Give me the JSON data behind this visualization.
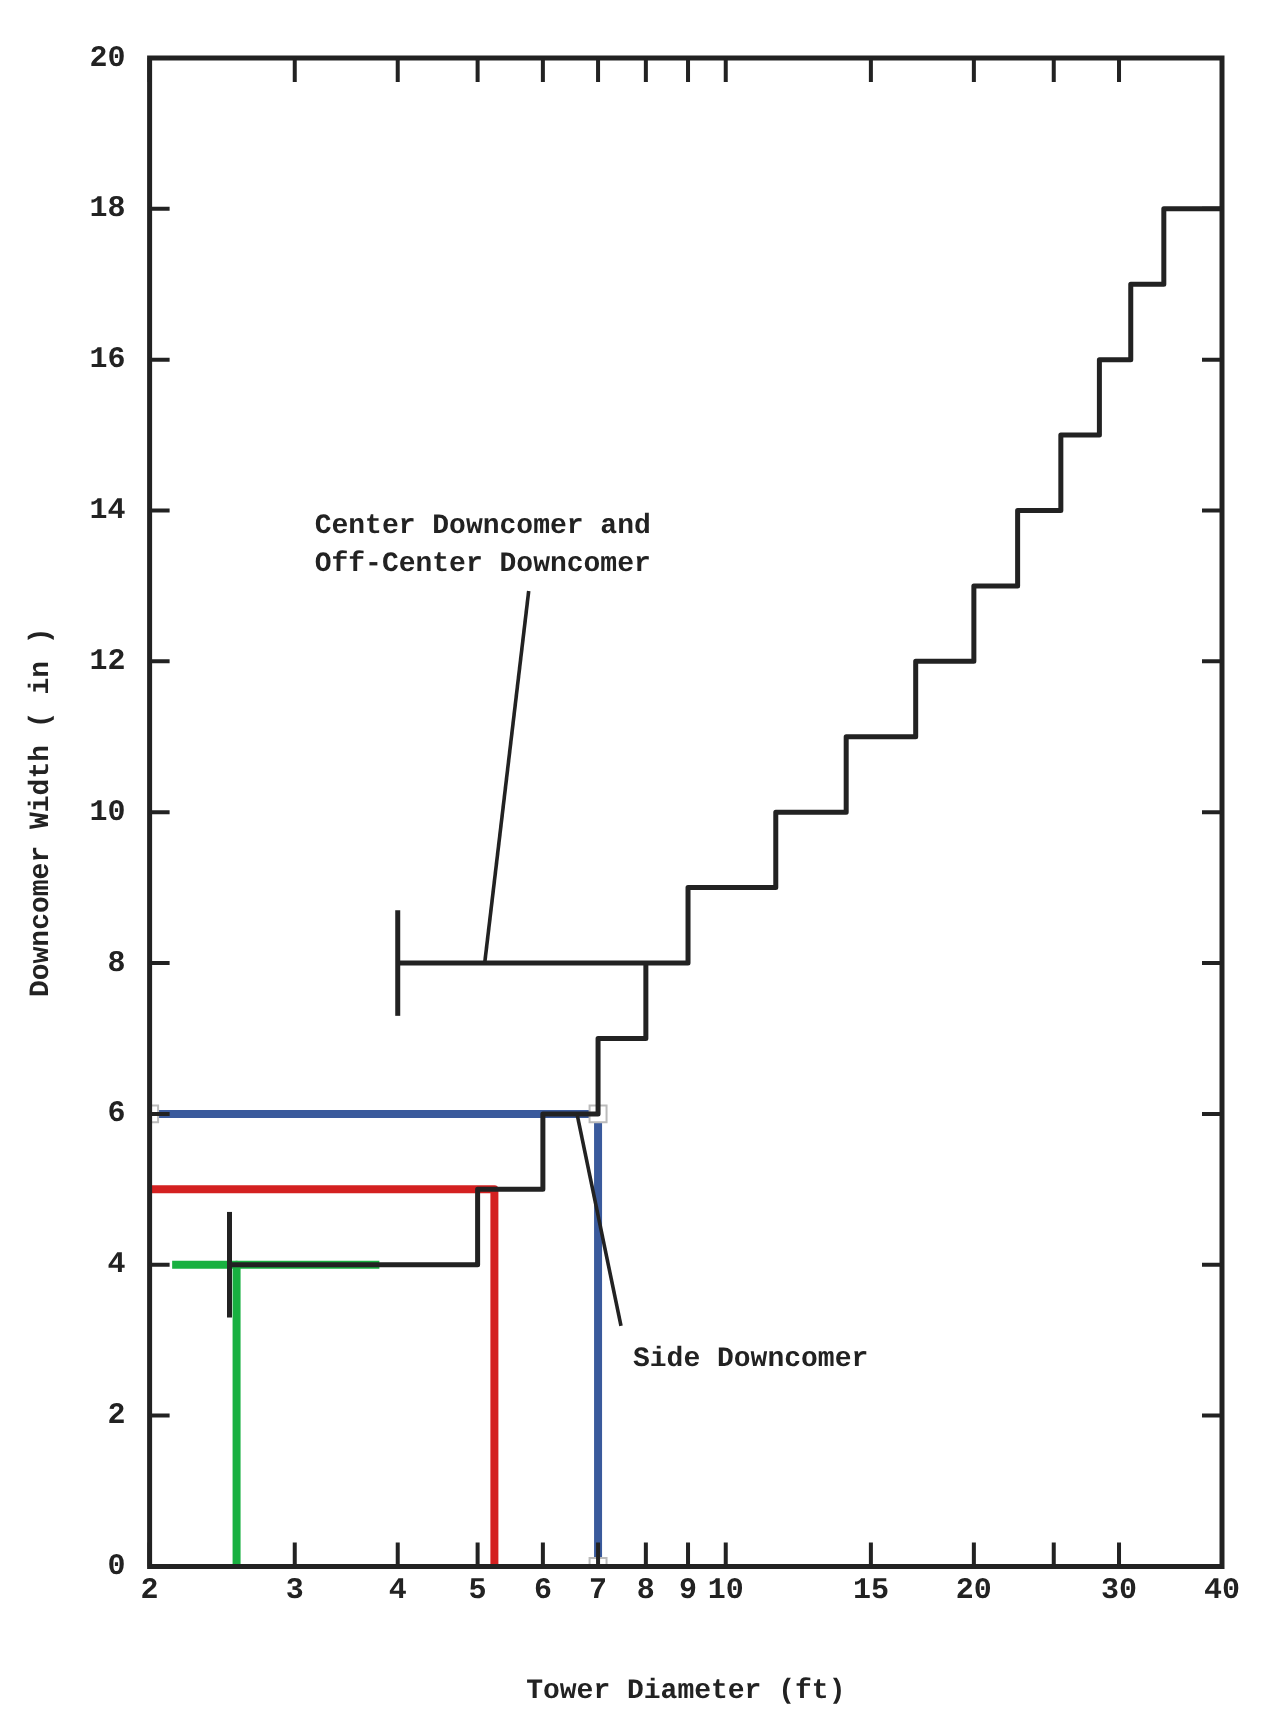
{
  "chart_data": {
    "type": "step",
    "xlabel": "Tower Diameter (ft)",
    "ylabel": "Downcomer Width ( in )",
    "log": "x",
    "xlim": [
      2,
      40
    ],
    "ylim": [
      0,
      20
    ],
    "xticks": [
      2,
      3,
      4,
      5,
      6,
      7,
      8,
      9,
      10,
      15,
      20,
      {
        "value": 25,
        "label": null
      },
      30,
      40
    ],
    "yticks": [
      0,
      2,
      4,
      6,
      8,
      10,
      12,
      14,
      16,
      18,
      20
    ],
    "grid": false,
    "legend": false,
    "series": [
      {
        "type": "step",
        "color": "#222222",
        "x": [
          4,
          9,
          11.5,
          14,
          17,
          20,
          22.6,
          25.5,
          28.4,
          31,
          34,
          40
        ],
        "values": [
          8,
          9,
          10,
          11,
          12,
          13,
          14,
          15,
          16,
          17,
          18,
          18
        ],
        "errors": [
          0.7,
          null,
          null,
          null,
          null,
          null,
          null,
          null,
          null,
          null,
          null,
          null
        ]
      },
      {
        "type": "step",
        "color": "#222222",
        "x": [
          2.5,
          5,
          6,
          7,
          8
        ],
        "values": [
          4,
          5,
          6,
          7,
          8
        ],
        "errors": [
          0.7,
          null,
          null,
          null,
          null
        ]
      },
      {
        "type": "line",
        "color": "#3a5a9c",
        "marker": "square",
        "x": [
          2,
          7,
          7
        ],
        "values": [
          6,
          6,
          0
        ]
      },
      {
        "type": "line",
        "color": "#d42020",
        "x": [
          2,
          5.24,
          5.24
        ],
        "values": [
          5,
          5,
          0
        ]
      },
      {
        "type": "line",
        "color": "#18b040",
        "x": [
          2.13,
          3.8
        ],
        "values": [
          4,
          4
        ]
      },
      {
        "type": "line",
        "color": "#18b040",
        "x": [
          2.55,
          2.55
        ],
        "values": [
          4,
          0
        ]
      }
    ],
    "annotations": [
      {
        "text": "Center Downcomer and\nOff-Center Downcomer",
        "x": 5.1,
        "y": 8
      },
      {
        "text": "Side Downcomer",
        "x": 6.6,
        "y": 6
      }
    ]
  }
}
